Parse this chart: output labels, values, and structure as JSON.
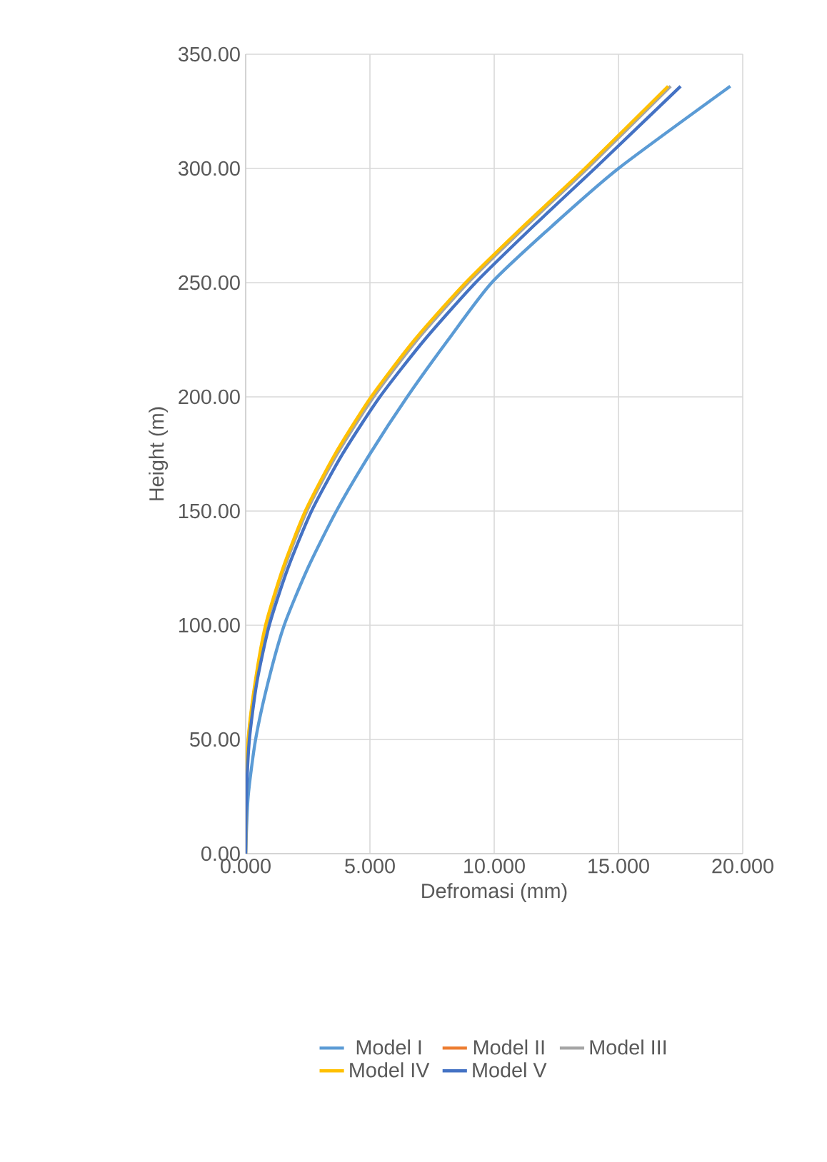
{
  "chart_data": {
    "type": "line",
    "xlabel": "Defromasi (mm)",
    "ylabel": "Height (m)",
    "xlim": [
      0,
      20
    ],
    "ylim": [
      0,
      350
    ],
    "xticks": [
      {
        "value": 0,
        "label": "0.000"
      },
      {
        "value": 5,
        "label": "5.000"
      },
      {
        "value": 10,
        "label": "10.000"
      },
      {
        "value": 15,
        "label": "15.000"
      },
      {
        "value": 20,
        "label": "20.000"
      }
    ],
    "yticks": [
      {
        "value": 0,
        "label": "0.00"
      },
      {
        "value": 50,
        "label": "50.00"
      },
      {
        "value": 100,
        "label": "100.00"
      },
      {
        "value": 150,
        "label": "150.00"
      },
      {
        "value": 200,
        "label": "200.00"
      },
      {
        "value": 250,
        "label": "250.00"
      },
      {
        "value": 300,
        "label": "300.00"
      },
      {
        "value": 350,
        "label": "350.00"
      }
    ],
    "grid": true,
    "legend": "bottom",
    "marker": "none",
    "line_style": "solid",
    "series": [
      {
        "name": "Model I",
        "color": "#5b9bd5",
        "x": [
          0,
          0.1,
          0.4,
          0.9,
          1.55,
          2.5,
          3.65,
          5.0,
          6.5,
          8.15,
          9.9,
          12.35,
          15.0,
          19.5
        ],
        "values": [
          0,
          25,
          50,
          75,
          100,
          125,
          150,
          175,
          200,
          225,
          250,
          275,
          300,
          336
        ]
      },
      {
        "name": "Model II",
        "color": "#ed7d31",
        "values": [
          null,
          null,
          null,
          null,
          null,
          null,
          null,
          null,
          null,
          null,
          null,
          null,
          null,
          null
        ]
      },
      {
        "name": "Model III",
        "color": "#a5a5a5",
        "x": [
          0,
          0.02,
          0.11,
          0.4,
          0.83,
          1.55,
          2.46,
          3.68,
          5.15,
          6.9,
          8.95,
          11.3,
          13.75,
          17.1
        ],
        "values": [
          0,
          25,
          50,
          75,
          100,
          125,
          150,
          175,
          200,
          225,
          250,
          275,
          300,
          336
        ]
      },
      {
        "name": "Model IV",
        "color": "#ffc000",
        "x": [
          0,
          0.02,
          0.1,
          0.38,
          0.8,
          1.5,
          2.4,
          3.6,
          5.05,
          6.8,
          8.85,
          11.2,
          13.65,
          17.0
        ],
        "values": [
          0,
          25,
          50,
          75,
          100,
          125,
          150,
          175,
          200,
          225,
          250,
          275,
          300,
          336
        ]
      },
      {
        "name": "Model V",
        "color": "#4472c4",
        "x": [
          0,
          0.03,
          0.15,
          0.45,
          0.95,
          1.7,
          2.65,
          3.9,
          5.4,
          7.2,
          9.25,
          11.6,
          14.05,
          17.5
        ],
        "values": [
          0,
          25,
          50,
          75,
          100,
          125,
          150,
          175,
          200,
          225,
          250,
          275,
          300,
          336
        ]
      }
    ]
  }
}
